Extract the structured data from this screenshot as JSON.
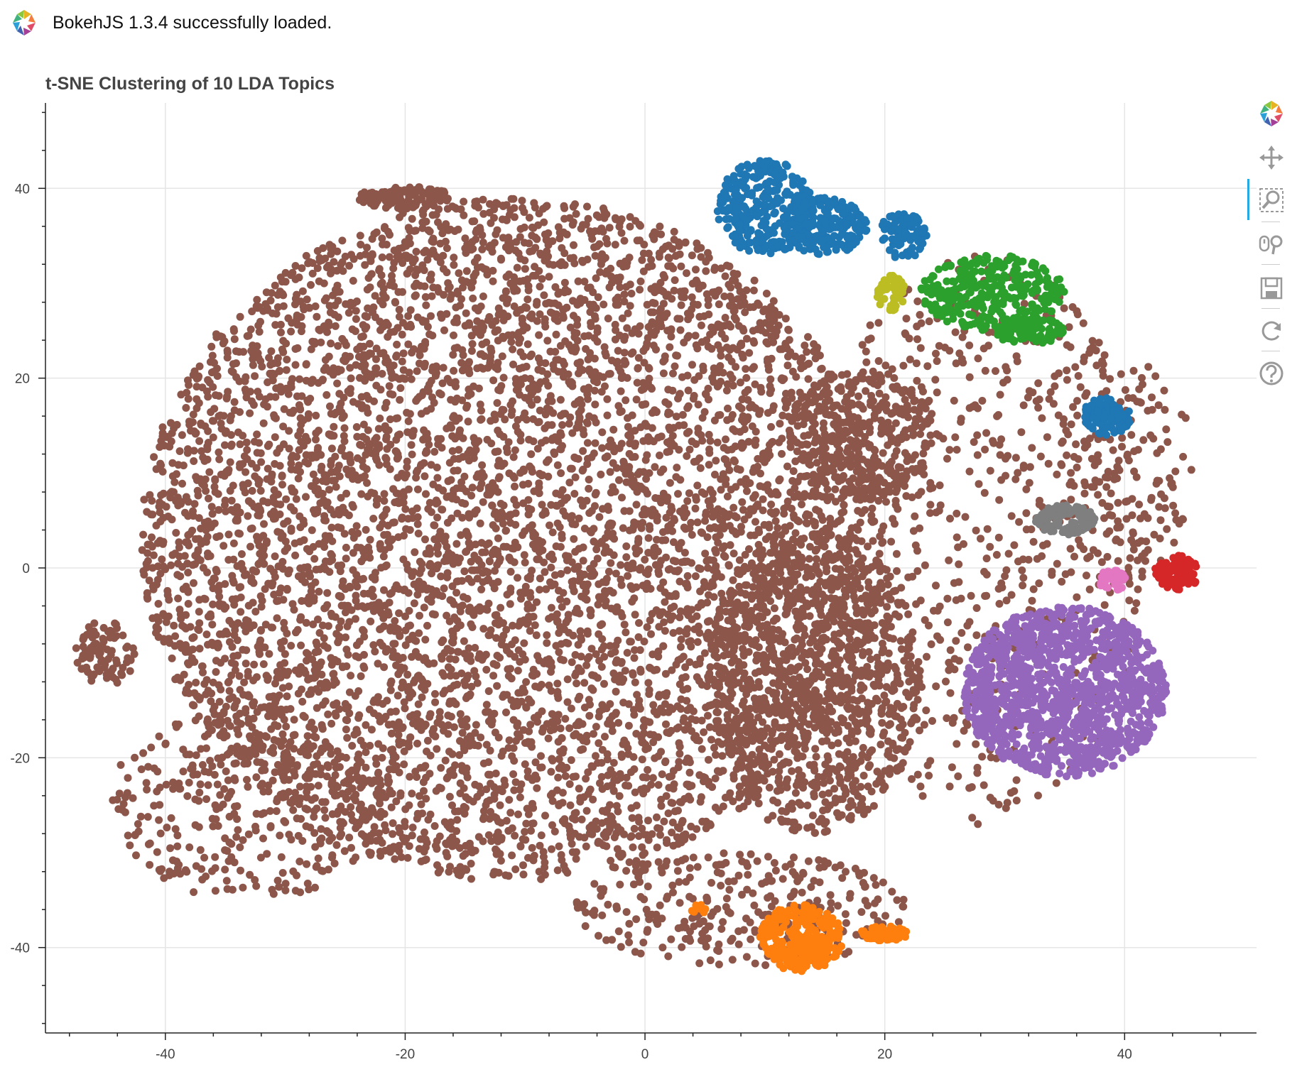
{
  "banner": {
    "message": "BokehJS 1.3.4 successfully loaded.",
    "logo_icon": "bokeh-logo-icon"
  },
  "toolbar": {
    "logo_icon": "bokeh-logo-icon",
    "tools": [
      {
        "name": "pan",
        "icon": "pan-move-icon",
        "active": false
      },
      {
        "name": "box-zoom",
        "icon": "box-zoom-icon",
        "active": true
      },
      {
        "name": "wheel-zoom",
        "icon": "wheel-zoom-icon",
        "active": false
      },
      {
        "name": "save",
        "icon": "save-icon",
        "active": false
      },
      {
        "name": "reset",
        "icon": "reset-icon",
        "active": false
      },
      {
        "name": "help",
        "icon": "help-icon",
        "active": false
      }
    ],
    "active_color": "#26aae1"
  },
  "chart_data": {
    "type": "scatter",
    "title": "t-SNE Clustering of 10 LDA Topics",
    "xlabel": "",
    "ylabel": "",
    "xlim": [
      -50,
      51
    ],
    "ylim": [
      -49,
      49
    ],
    "x_ticks": [
      -40,
      -20,
      0,
      20,
      40
    ],
    "y_ticks": [
      -40,
      -20,
      0,
      20,
      40
    ],
    "grid": true,
    "legend": "none",
    "series": [
      {
        "color": "#8c564b",
        "regions": [
          {
            "cx": -11,
            "cy": 3,
            "rx": 31,
            "ry": 36,
            "n": 6000
          },
          {
            "cx": 14,
            "cy": -12,
            "rx": 9,
            "ry": 16,
            "n": 900
          },
          {
            "cx": 18,
            "cy": 14,
            "rx": 6,
            "ry": 7,
            "n": 300
          },
          {
            "cx": -20,
            "cy": 39,
            "rx": 4,
            "ry": 1.2,
            "n": 120
          },
          {
            "cx": -45,
            "cy": -9,
            "rx": 2.5,
            "ry": 3.5,
            "n": 90
          },
          {
            "cx": 28,
            "cy": 3,
            "rx": 14,
            "ry": 30,
            "n": 700
          },
          {
            "cx": 8,
            "cy": -36,
            "rx": 14,
            "ry": 6,
            "n": 300
          },
          {
            "cx": -33,
            "cy": -25,
            "rx": 12,
            "ry": 10,
            "n": 350
          },
          {
            "cx": 40,
            "cy": 10,
            "rx": 6,
            "ry": 12,
            "n": 150
          }
        ]
      },
      {
        "color": "#1f77b4",
        "regions": [
          {
            "cx": 10,
            "cy": 38,
            "rx": 4,
            "ry": 5,
            "n": 300
          },
          {
            "cx": 15,
            "cy": 36,
            "rx": 3.5,
            "ry": 3,
            "n": 220
          },
          {
            "cx": 21.5,
            "cy": 35,
            "rx": 2,
            "ry": 2.5,
            "n": 90
          },
          {
            "cx": 38.5,
            "cy": 16,
            "rx": 2,
            "ry": 2,
            "n": 100
          }
        ]
      },
      {
        "color": "#2ca02c",
        "regions": [
          {
            "cx": 29,
            "cy": 29,
            "rx": 6,
            "ry": 4,
            "n": 320
          },
          {
            "cx": 32,
            "cy": 25,
            "rx": 3,
            "ry": 1.5,
            "n": 100
          }
        ]
      },
      {
        "color": "#bcbd22",
        "regions": [
          {
            "cx": 20.5,
            "cy": 29,
            "rx": 1.2,
            "ry": 2,
            "n": 60
          }
        ]
      },
      {
        "color": "#7f7f7f",
        "regions": [
          {
            "cx": 35,
            "cy": 5,
            "rx": 2.6,
            "ry": 1.6,
            "n": 110
          }
        ]
      },
      {
        "color": "#d62728",
        "regions": [
          {
            "cx": 44.5,
            "cy": -0.5,
            "rx": 2,
            "ry": 1.8,
            "n": 110
          }
        ]
      },
      {
        "color": "#e377c2",
        "regions": [
          {
            "cx": 39,
            "cy": -1.3,
            "rx": 1.2,
            "ry": 1.1,
            "n": 40
          }
        ]
      },
      {
        "color": "#9467bd",
        "regions": [
          {
            "cx": 35,
            "cy": -13,
            "rx": 8.5,
            "ry": 9,
            "n": 1300
          }
        ]
      },
      {
        "color": "#ff7f0e",
        "regions": [
          {
            "cx": 13,
            "cy": -39,
            "rx": 3.5,
            "ry": 3.5,
            "n": 260
          },
          {
            "cx": 20,
            "cy": -38.5,
            "rx": 2,
            "ry": 0.8,
            "n": 60
          },
          {
            "cx": 4.5,
            "cy": -36,
            "rx": 0.6,
            "ry": 0.6,
            "n": 8
          }
        ]
      }
    ]
  }
}
